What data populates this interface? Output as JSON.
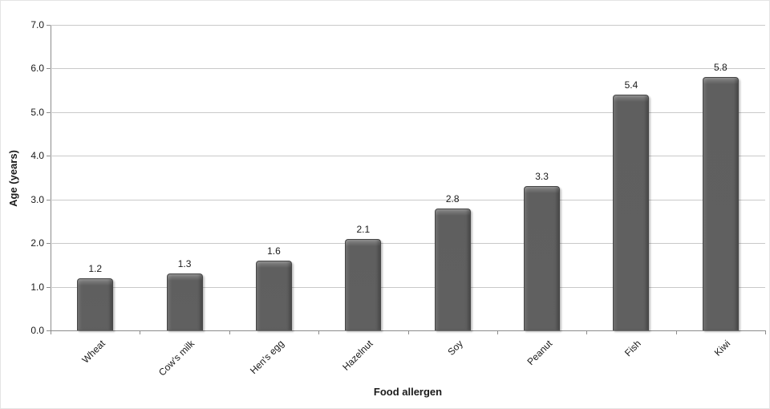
{
  "chart_data": {
    "type": "bar",
    "title": "",
    "xlabel": "Food allergen",
    "ylabel": "Age (years)",
    "categories": [
      "Wheat",
      "Cow's milk",
      "Hen's egg",
      "Hazelnut",
      "Soy",
      "Peanut",
      "Fish",
      "Kiwi"
    ],
    "values": [
      1.2,
      1.3,
      1.6,
      2.1,
      2.8,
      3.3,
      5.4,
      5.8
    ],
    "bar_labels": [
      "1.2",
      "1.3",
      "1.6",
      "2.1",
      "2.8",
      "3.3",
      "5.4",
      "5.8"
    ],
    "ylim": [
      0,
      7
    ],
    "ytick_step": 1,
    "ytick_labels": [
      "0.0",
      "1.0",
      "2.0",
      "3.0",
      "4.0",
      "5.0",
      "6.0",
      "7.0"
    ],
    "grid": true,
    "legend": "none",
    "colors": {
      "bar_fill": "#606060",
      "bar_border": "#474747",
      "gridline": "#c9c9c9",
      "axis": "#8c8c8c",
      "text": "#1a1a1a",
      "background": "#ffffff"
    }
  }
}
